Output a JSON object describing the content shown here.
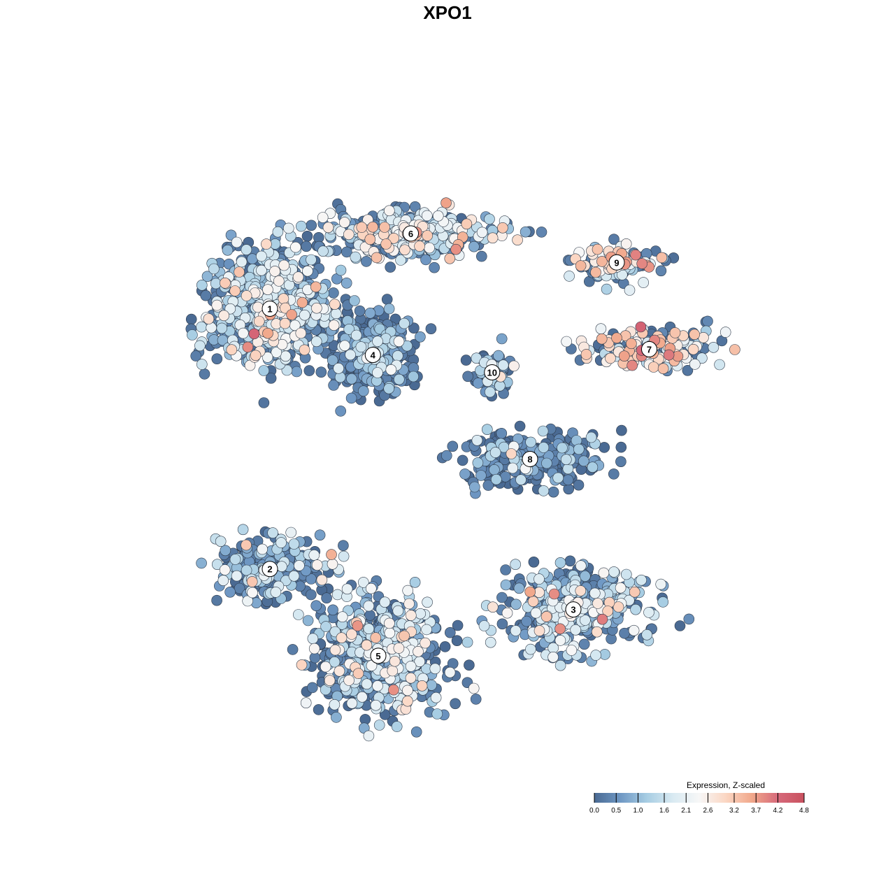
{
  "chart_data": {
    "type": "scatter",
    "title": "XPO1",
    "legend": {
      "title": "Expression, Z-scaled",
      "placement": "bottom-right",
      "ticks": [
        "0.0",
        "0.5",
        "1.0",
        "1.6",
        "2.1",
        "2.6",
        "3.2",
        "3.7",
        "4.2",
        "4.8"
      ],
      "range": [
        0.0,
        4.8
      ],
      "colors": [
        "#4a6a93",
        "#6f98c4",
        "#a7cde3",
        "#d9eaf2",
        "#f7f7f7",
        "#fbd7c4",
        "#f1a88b",
        "#d6697a",
        "#c9515f"
      ]
    },
    "clusters": [
      {
        "label": "1",
        "x": 14,
        "y": 74,
        "spread_x": 10,
        "spread_y": 9,
        "n": 700,
        "mean_expr": 1.4
      },
      {
        "label": "6",
        "x": 40,
        "y": 87,
        "spread_x": 14,
        "spread_y": 3.5,
        "n": 420,
        "mean_expr": 1.6
      },
      {
        "label": "9",
        "x": 78,
        "y": 82,
        "spread_x": 7,
        "spread_y": 2.6,
        "n": 130,
        "mean_expr": 2.1
      },
      {
        "label": "7",
        "x": 84,
        "y": 67,
        "spread_x": 10,
        "spread_y": 3.2,
        "n": 170,
        "mean_expr": 2.5
      },
      {
        "label": "4",
        "x": 33,
        "y": 66,
        "spread_x": 6.5,
        "spread_y": 6,
        "n": 380,
        "mean_expr": 0.3
      },
      {
        "label": "10",
        "x": 55,
        "y": 63,
        "spread_x": 3,
        "spread_y": 4,
        "n": 90,
        "mean_expr": 0.5
      },
      {
        "label": "8",
        "x": 62,
        "y": 48,
        "spread_x": 12,
        "spread_y": 4,
        "n": 260,
        "mean_expr": 0.3
      },
      {
        "label": "2",
        "x": 14,
        "y": 29,
        "spread_x": 9,
        "spread_y": 5,
        "n": 220,
        "mean_expr": 0.8
      },
      {
        "label": "3",
        "x": 70,
        "y": 22,
        "spread_x": 12,
        "spread_y": 6,
        "n": 450,
        "mean_expr": 1.3
      },
      {
        "label": "5",
        "x": 34,
        "y": 14,
        "spread_x": 11,
        "spread_y": 9,
        "n": 600,
        "mean_expr": 1.2
      }
    ],
    "x_range": [
      -10,
      110
    ],
    "y_range": [
      -5,
      105
    ],
    "grid": false
  }
}
